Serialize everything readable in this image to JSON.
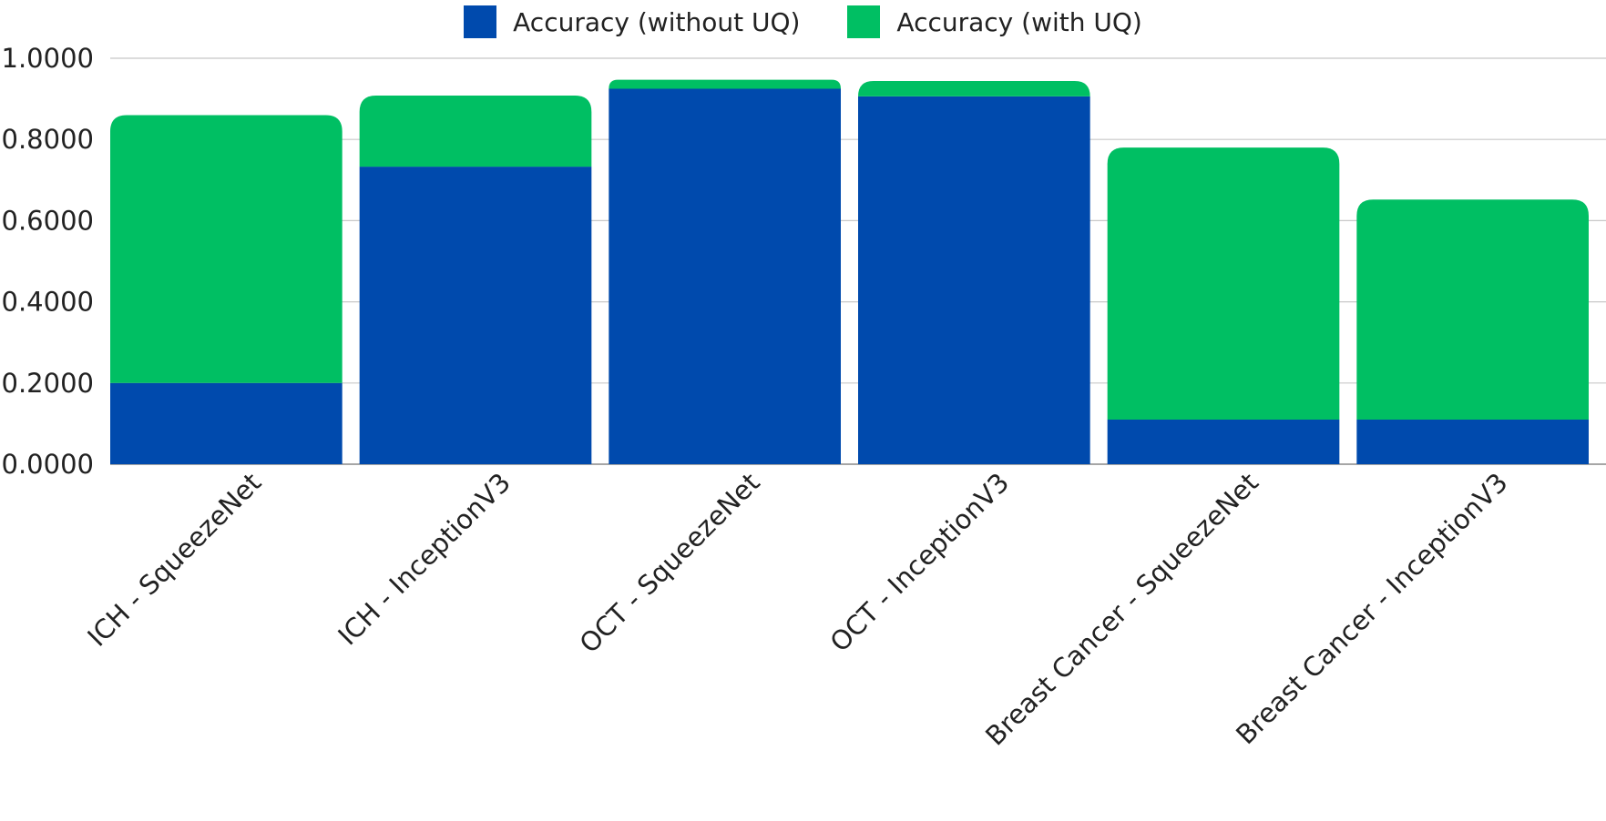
{
  "chart_data": {
    "type": "bar",
    "stacked": true,
    "categories": [
      "ICH - SqueezeNet",
      "ICH - InceptionV3",
      "OCT - SqueezeNet",
      "OCT - InceptionV3",
      "Breast Cancer - SqueezeNet",
      "Breast Cancer - InceptionV3"
    ],
    "series": [
      {
        "name": "Accuracy (without UQ)",
        "color": "#004AAD",
        "values": [
          0.2,
          0.733,
          0.925,
          0.906,
          0.11,
          0.11
        ]
      },
      {
        "name": "Accuracy (with UQ)",
        "color": "#00BF63",
        "values": [
          0.66,
          0.175,
          0.022,
          0.038,
          0.67,
          0.542
        ]
      }
    ],
    "y_ticks": [
      "0.0000",
      "0.2000",
      "0.4000",
      "0.6000",
      "0.8000",
      "1.0000"
    ],
    "ylim": [
      0,
      1.0
    ],
    "grid": true,
    "legend_position": "top-center",
    "gridline_color": "#c8c8c8"
  }
}
